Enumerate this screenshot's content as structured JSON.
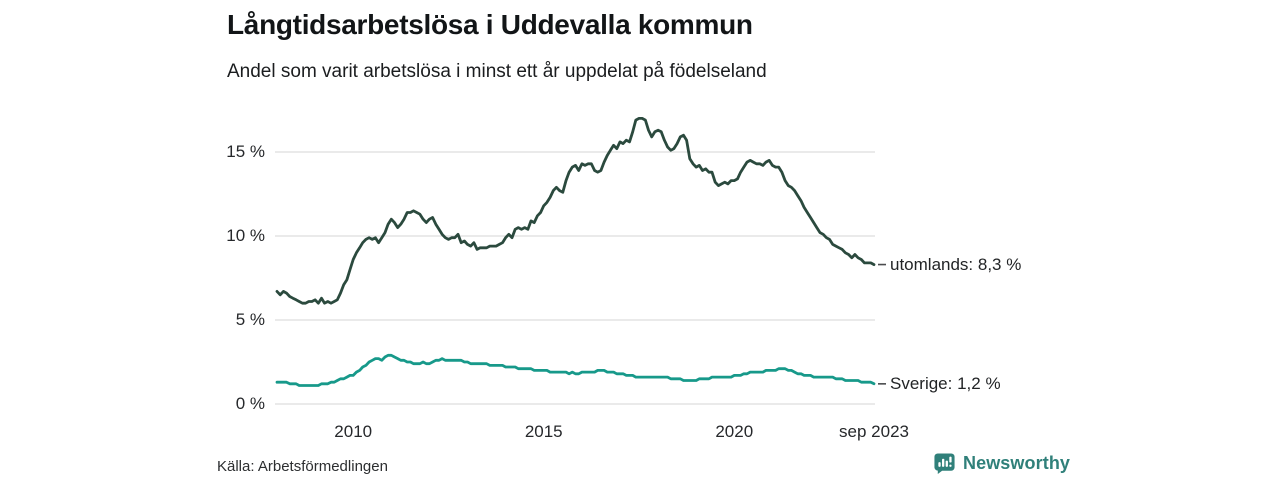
{
  "header": {
    "title": "Långtidsarbetslösa i Uddevalla kommun",
    "subtitle": "Andel som varit arbetslösa i minst ett år uppdelat på födelseland"
  },
  "footer": {
    "source": "Källa: Arbetsförmedlingen",
    "brand": "Newsworthy"
  },
  "colors": {
    "utomlands_line": "#2b4a3e",
    "sverige_line": "#17998a",
    "gridline": "#e4e4e4",
    "tick_text": "#26282b",
    "brand_teal": "#30807a"
  },
  "chart_data": {
    "type": "line",
    "title": "Långtidsarbetslösa i Uddevalla kommun",
    "subtitle": "Andel som varit arbetslösa i minst ett år uppdelat på födelseland",
    "unit": "%",
    "frequency": "monthly",
    "x_start": "2008-01",
    "x_end": "2023-09",
    "ylim": [
      0,
      17.5
    ],
    "grid": true,
    "legend_position": "right-end-labels",
    "y_ticks": [
      {
        "value": 0,
        "label": "0 %"
      },
      {
        "value": 5,
        "label": "5 %"
      },
      {
        "value": 10,
        "label": "10 %"
      },
      {
        "value": 15,
        "label": "15 %"
      }
    ],
    "x_ticks": [
      {
        "month_index": 24,
        "label": "2010"
      },
      {
        "month_index": 84,
        "label": "2015"
      },
      {
        "month_index": 144,
        "label": "2020"
      },
      {
        "month_index": 188,
        "label": "sep 2023"
      }
    ],
    "series": [
      {
        "name": "utomlands",
        "end_label": "utomlands: 8,3 %",
        "last_value": 8.3,
        "color": "#2b4a3e",
        "values": [
          6.7,
          6.5,
          6.7,
          6.6,
          6.4,
          6.3,
          6.2,
          6.1,
          6.0,
          6.0,
          6.1,
          6.1,
          6.2,
          6.0,
          6.3,
          6.0,
          6.1,
          6.0,
          6.1,
          6.2,
          6.6,
          7.1,
          7.4,
          8.0,
          8.6,
          9.0,
          9.3,
          9.6,
          9.8,
          9.9,
          9.8,
          9.9,
          9.6,
          9.9,
          10.2,
          10.7,
          11.0,
          10.8,
          10.5,
          10.7,
          11.0,
          11.4,
          11.4,
          11.5,
          11.4,
          11.3,
          11.0,
          10.8,
          11.0,
          11.1,
          10.7,
          10.4,
          10.1,
          9.9,
          9.8,
          9.9,
          9.9,
          10.1,
          9.6,
          9.7,
          9.5,
          9.4,
          9.6,
          9.2,
          9.3,
          9.3,
          9.3,
          9.4,
          9.4,
          9.4,
          9.5,
          9.6,
          9.9,
          10.1,
          9.9,
          10.4,
          10.5,
          10.4,
          10.5,
          10.4,
          10.9,
          10.8,
          11.2,
          11.4,
          11.8,
          12.0,
          12.3,
          12.7,
          12.9,
          12.7,
          12.6,
          13.3,
          13.8,
          14.1,
          14.2,
          13.9,
          14.3,
          14.2,
          14.3,
          14.3,
          13.9,
          13.8,
          13.9,
          14.4,
          14.8,
          15.1,
          15.4,
          15.2,
          15.6,
          15.5,
          15.7,
          15.6,
          16.2,
          16.9,
          17.0,
          17.0,
          16.9,
          16.3,
          15.9,
          16.2,
          16.3,
          16.2,
          15.7,
          15.3,
          15.1,
          15.2,
          15.5,
          15.9,
          16.0,
          15.7,
          14.6,
          14.3,
          14.1,
          14.2,
          13.9,
          14.0,
          13.8,
          13.8,
          13.2,
          13.0,
          13.1,
          13.2,
          13.1,
          13.3,
          13.3,
          13.4,
          13.8,
          14.1,
          14.4,
          14.5,
          14.4,
          14.3,
          14.3,
          14.2,
          14.4,
          14.5,
          14.2,
          14.1,
          14.1,
          13.8,
          13.3,
          13.0,
          12.9,
          12.7,
          12.4,
          12.1,
          11.7,
          11.4,
          11.1,
          10.8,
          10.5,
          10.2,
          10.1,
          9.9,
          9.8,
          9.5,
          9.4,
          9.3,
          9.2,
          9.0,
          8.9,
          8.7,
          8.9,
          8.7,
          8.6,
          8.4,
          8.4,
          8.4,
          8.3
        ]
      },
      {
        "name": "Sverige",
        "end_label": "Sverige: 1,2 %",
        "last_value": 1.2,
        "color": "#17998a",
        "values": [
          1.3,
          1.3,
          1.3,
          1.3,
          1.2,
          1.2,
          1.2,
          1.1,
          1.1,
          1.1,
          1.1,
          1.1,
          1.1,
          1.1,
          1.2,
          1.2,
          1.2,
          1.3,
          1.3,
          1.4,
          1.5,
          1.5,
          1.6,
          1.7,
          1.7,
          1.9,
          2.0,
          2.2,
          2.3,
          2.5,
          2.6,
          2.7,
          2.7,
          2.6,
          2.8,
          2.9,
          2.9,
          2.8,
          2.7,
          2.6,
          2.6,
          2.5,
          2.5,
          2.4,
          2.4,
          2.4,
          2.5,
          2.4,
          2.4,
          2.5,
          2.6,
          2.6,
          2.7,
          2.6,
          2.6,
          2.6,
          2.6,
          2.6,
          2.6,
          2.5,
          2.5,
          2.4,
          2.4,
          2.4,
          2.4,
          2.4,
          2.4,
          2.3,
          2.3,
          2.3,
          2.3,
          2.3,
          2.2,
          2.2,
          2.2,
          2.2,
          2.1,
          2.1,
          2.1,
          2.1,
          2.1,
          2.0,
          2.0,
          2.0,
          2.0,
          2.0,
          1.9,
          1.9,
          1.9,
          1.9,
          1.9,
          1.9,
          1.8,
          1.9,
          1.8,
          1.8,
          1.9,
          1.9,
          1.9,
          1.9,
          1.9,
          2.0,
          2.0,
          2.0,
          1.9,
          1.9,
          1.9,
          1.8,
          1.8,
          1.8,
          1.7,
          1.7,
          1.7,
          1.6,
          1.6,
          1.6,
          1.6,
          1.6,
          1.6,
          1.6,
          1.6,
          1.6,
          1.6,
          1.6,
          1.5,
          1.5,
          1.5,
          1.5,
          1.4,
          1.4,
          1.4,
          1.4,
          1.4,
          1.5,
          1.5,
          1.5,
          1.5,
          1.6,
          1.6,
          1.6,
          1.6,
          1.6,
          1.6,
          1.6,
          1.7,
          1.7,
          1.7,
          1.8,
          1.8,
          1.9,
          1.9,
          1.9,
          1.9,
          1.9,
          2.0,
          2.0,
          2.0,
          2.0,
          2.1,
          2.1,
          2.1,
          2.0,
          2.0,
          1.9,
          1.8,
          1.8,
          1.7,
          1.7,
          1.7,
          1.6,
          1.6,
          1.6,
          1.6,
          1.6,
          1.6,
          1.6,
          1.5,
          1.5,
          1.5,
          1.4,
          1.4,
          1.4,
          1.4,
          1.4,
          1.3,
          1.3,
          1.3,
          1.3,
          1.2
        ]
      }
    ],
    "source": "Källa: Arbetsförmedlingen"
  }
}
